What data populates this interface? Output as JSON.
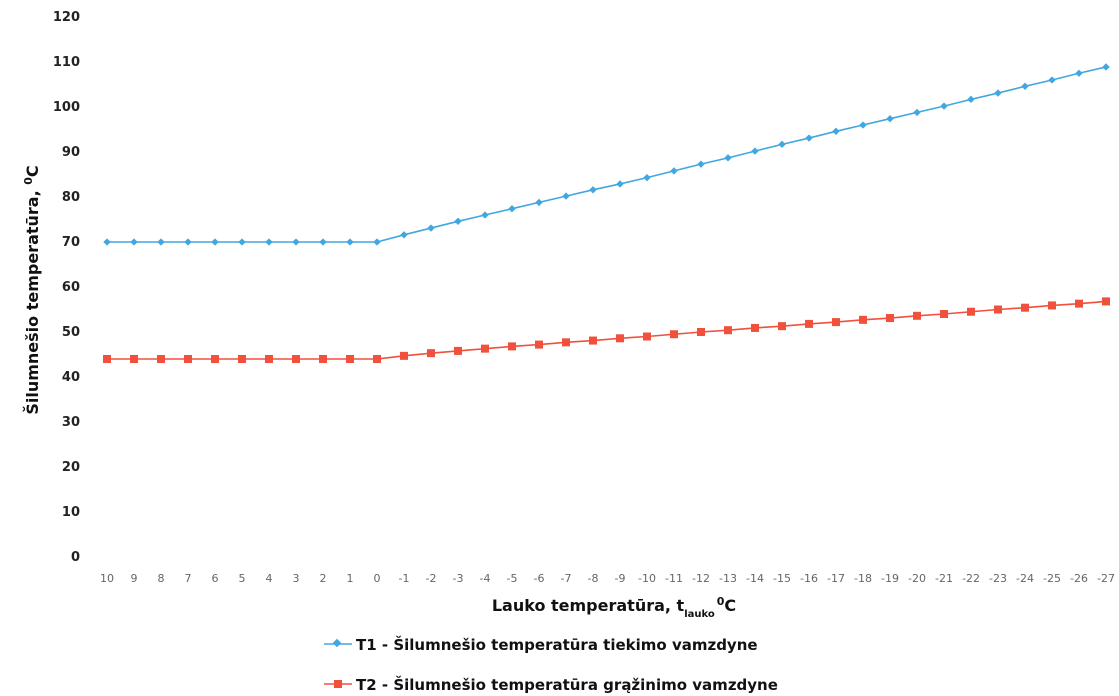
{
  "chart_data": {
    "type": "line",
    "title": "",
    "xlabel": {
      "main": "Lauko temperatūra, t",
      "subscript": "lauko",
      "superscript": "0",
      "unit": "C"
    },
    "ylabel": {
      "main": "Šilumnešio temperatūra, ",
      "superscript": "0",
      "unit": "C"
    },
    "ylim": [
      0,
      120
    ],
    "yticks": [
      "0",
      "10",
      "20",
      "30",
      "40",
      "50",
      "60",
      "70",
      "80",
      "90",
      "100",
      "110",
      "120"
    ],
    "categories": [
      "10",
      "9",
      "8",
      "7",
      "6",
      "5",
      "4",
      "3",
      "2",
      "1",
      "0",
      "-1",
      "-2",
      "-3",
      "-4",
      "-5",
      "-6",
      "-7",
      "-8",
      "-9",
      "-10",
      "-11",
      "-12",
      "-13",
      "-14",
      "-15",
      "-16",
      "-17",
      "-18",
      "-19",
      "-20",
      "-21",
      "-22",
      "-23",
      "-24",
      "-25",
      "-26",
      "-27"
    ],
    "grid": false,
    "legend_position": "bottom",
    "series": [
      {
        "name": "T1 - Šilumnešio temperatūra tiekimo vamzdyne",
        "color": "#41a7e0",
        "marker": "diamond",
        "values": [
          70,
          70,
          70,
          70,
          70,
          70,
          70,
          70,
          70,
          70,
          70,
          71.6,
          73.1,
          74.6,
          76.0,
          77.4,
          78.8,
          80.2,
          81.6,
          82.9,
          84.3,
          85.8,
          87.3,
          88.7,
          90.2,
          91.7,
          93.1,
          94.6,
          96.0,
          97.4,
          98.8,
          100.2,
          101.7,
          103.1,
          104.6,
          106.0,
          107.5,
          108.9
        ]
      },
      {
        "name": "T2 - Šilumnešio temperatūra grąžinimo vamzdyne",
        "color": "#f0503c",
        "marker": "square",
        "values": [
          44,
          44,
          44,
          44,
          44,
          44,
          44,
          44,
          44,
          44,
          44,
          44.7,
          45.3,
          45.8,
          46.3,
          46.8,
          47.2,
          47.7,
          48.1,
          48.6,
          49.0,
          49.5,
          50.0,
          50.4,
          50.9,
          51.3,
          51.8,
          52.2,
          52.7,
          53.1,
          53.6,
          54.0,
          54.5,
          55.0,
          55.4,
          55.9,
          56.3,
          56.8
        ]
      }
    ]
  }
}
